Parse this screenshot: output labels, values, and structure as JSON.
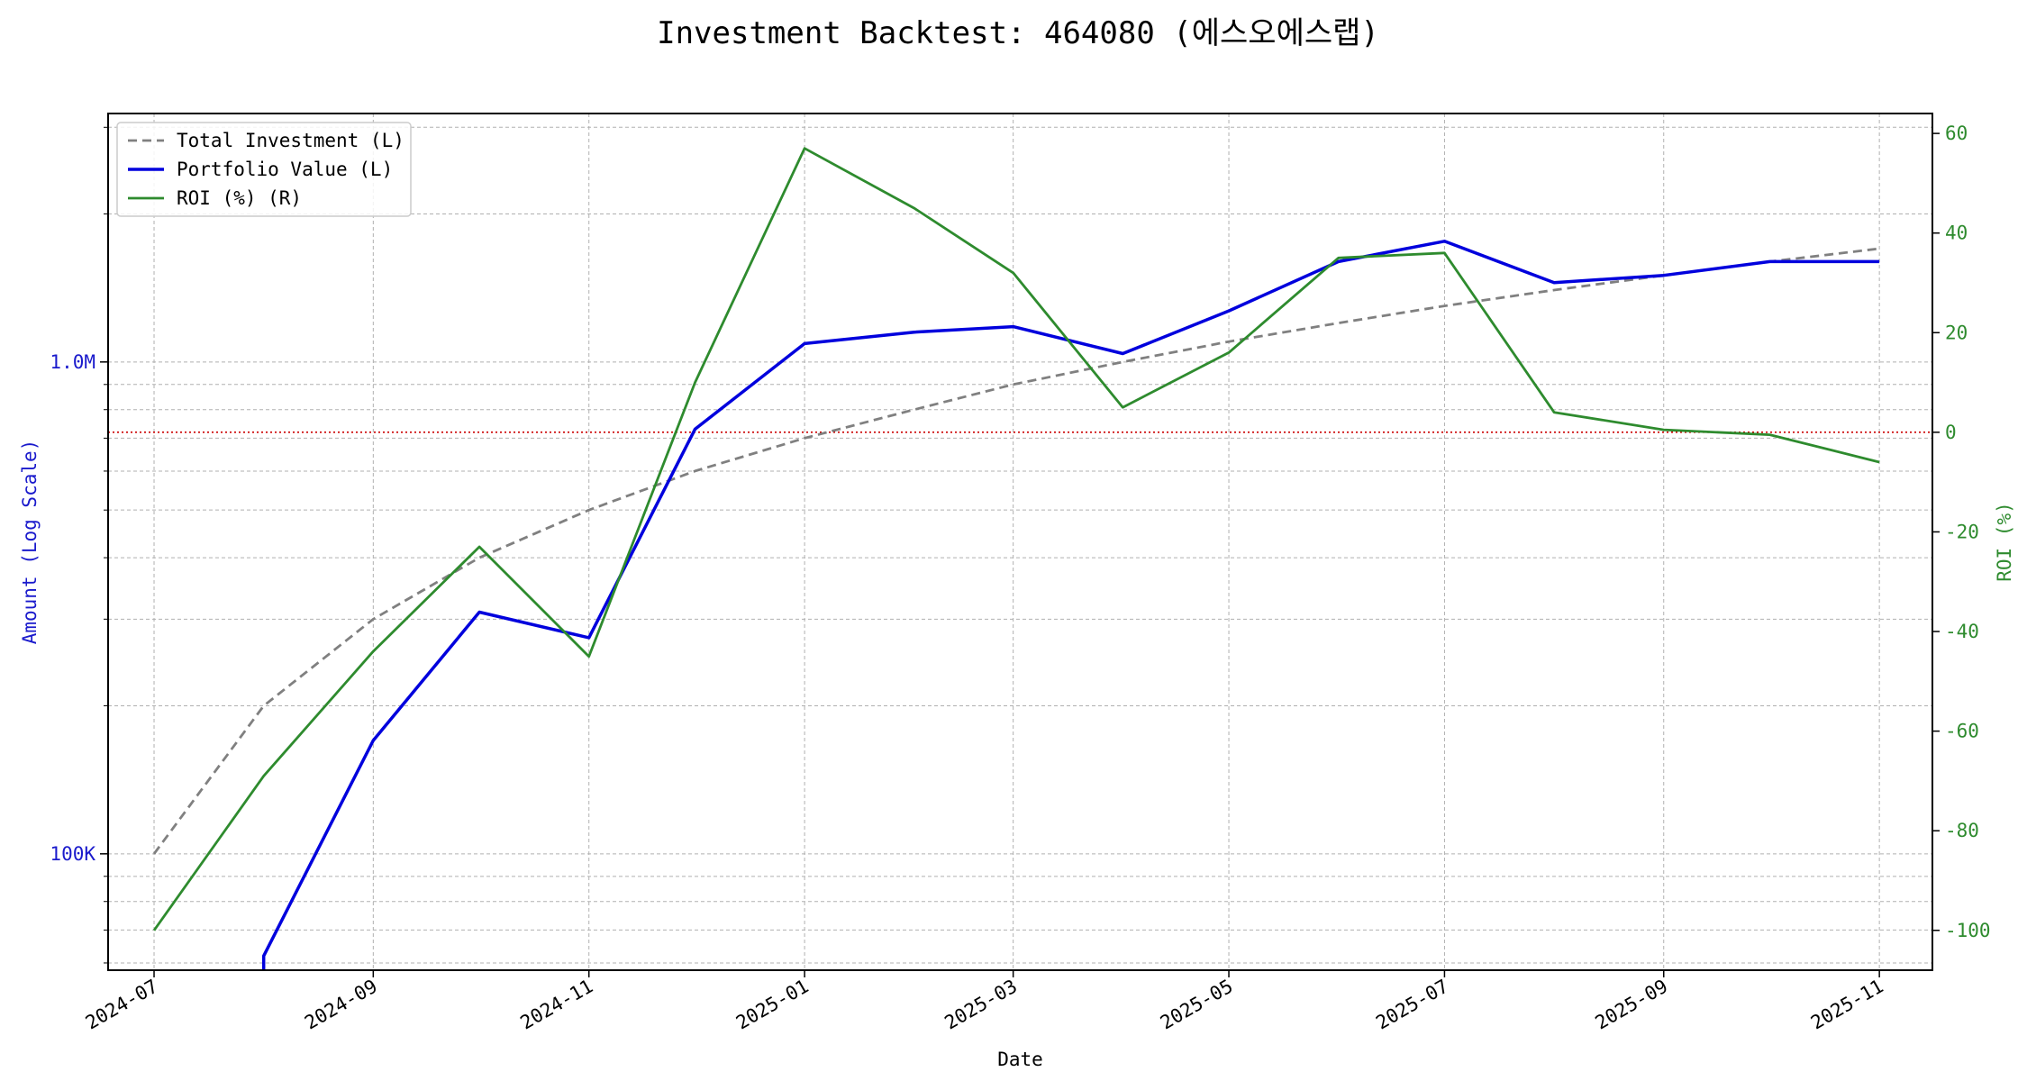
{
  "chart_data": {
    "type": "line",
    "title": "Investment Backtest: 464080 (에스오에스랩)",
    "xlabel": "Date",
    "ylabel_left": "Amount (Log Scale)",
    "ylabel_right": "ROI (%)",
    "left_scale": "log",
    "left_ylim": [
      58000,
      3200000
    ],
    "right_ylim": [
      -108,
      64
    ],
    "x_range": [
      "2024-06-18",
      "2025-11-16"
    ],
    "x_tick_labels": [
      "2024-07",
      "2024-09",
      "2024-11",
      "2025-01",
      "2025-03",
      "2025-05",
      "2025-07",
      "2025-09",
      "2025-11"
    ],
    "left_tick_labels": [
      {
        "value": 100000,
        "label": "100K"
      },
      {
        "value": 1000000,
        "label": "1.0M"
      }
    ],
    "right_ticks": [
      -100,
      -80,
      -60,
      -40,
      -20,
      0,
      20,
      40,
      60
    ],
    "x": [
      "2024-07-01",
      "2024-08-01",
      "2024-09-01",
      "2024-10-01",
      "2024-11-01",
      "2024-12-01",
      "2025-01-01",
      "2025-02-01",
      "2025-03-01",
      "2025-04-01",
      "2025-05-01",
      "2025-06-01",
      "2025-07-01",
      "2025-08-01",
      "2025-09-01",
      "2025-10-01",
      "2025-11-01"
    ],
    "series": [
      {
        "name": "Total Investment (L)",
        "axis": "left",
        "color": "#808080",
        "dash": "dashed",
        "values": [
          100000,
          200000,
          300000,
          400000,
          500000,
          600000,
          700000,
          800000,
          900000,
          1000000,
          1100000,
          1200000,
          1300000,
          1400000,
          1500000,
          1600000,
          1700000
        ]
      },
      {
        "name": "Portfolio Value (L)",
        "axis": "left",
        "color": "#0000dd",
        "dash": "solid",
        "values": [
          null,
          62000,
          170000,
          310000,
          275000,
          730000,
          1090000,
          1150000,
          1180000,
          1040000,
          1270000,
          1600000,
          1760000,
          1450000,
          1500000,
          1600000,
          1600000
        ]
      },
      {
        "name": "ROI (%) (R)",
        "axis": "right",
        "color": "#2e8b2e",
        "dash": "solid",
        "values": [
          -100,
          -69,
          -44,
          -23,
          -45,
          10,
          57,
          45,
          32,
          5,
          16,
          35,
          36,
          4,
          0.5,
          -0.5,
          -6
        ]
      }
    ],
    "reference_line": {
      "axis": "right",
      "value": 0,
      "color": "#cc0000",
      "style": "dotted"
    },
    "grid": true,
    "legend_position": "upper-left"
  }
}
